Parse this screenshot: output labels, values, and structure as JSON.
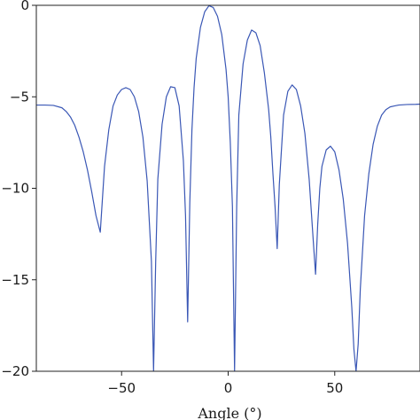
{
  "chart_data": {
    "type": "line",
    "title": "",
    "xlabel": "Angle (°)",
    "ylabel": "",
    "xlim": [
      -90,
      90
    ],
    "ylim": [
      -20,
      0
    ],
    "grid": false,
    "legend": "none",
    "x_ticks": [
      -50,
      0,
      50
    ],
    "x_tick_labels": [
      "−50",
      "0",
      "50"
    ],
    "y_ticks": [
      0,
      -5,
      -10,
      -15,
      -20
    ],
    "y_tick_labels": [
      "0",
      "−5",
      "−10",
      "−15",
      "−20"
    ],
    "line_color": "#3a57b5",
    "series": [
      {
        "x": [
          -90,
          -86,
          -82,
          -78,
          -76,
          -74,
          -72,
          -70,
          -68,
          -66,
          -64,
          -62,
          -60,
          -58,
          -56,
          -54,
          -52,
          -50,
          -48,
          -46,
          -44,
          -42,
          -40,
          -38,
          -36,
          -35,
          -34,
          -33,
          -31,
          -29,
          -27,
          -25,
          -23,
          -21,
          -20,
          -19,
          -18,
          -17,
          -16,
          -15,
          -13,
          -11,
          -9,
          -7,
          -5,
          -3,
          -1,
          0,
          1,
          2,
          3,
          4,
          5,
          7,
          9,
          11,
          13,
          15,
          17,
          19,
          20,
          21,
          22,
          23,
          24,
          26,
          28,
          30,
          32,
          34,
          36,
          38,
          40,
          41,
          42,
          43,
          44,
          46,
          48,
          50,
          52,
          54,
          56,
          58,
          59,
          60,
          61,
          62,
          64,
          66,
          68,
          70,
          72,
          74,
          76,
          78,
          80,
          84,
          88,
          90
        ],
        "y": [
          -5.45,
          -5.45,
          -5.47,
          -5.6,
          -5.8,
          -6.1,
          -6.55,
          -7.2,
          -8.0,
          -9.0,
          -10.2,
          -11.5,
          -12.4,
          -8.8,
          -6.8,
          -5.5,
          -4.9,
          -4.6,
          -4.5,
          -4.6,
          -5.0,
          -5.8,
          -7.2,
          -9.6,
          -14.0,
          -20.0,
          -14.0,
          -9.5,
          -6.5,
          -5.0,
          -4.45,
          -4.5,
          -5.5,
          -8.5,
          -11.5,
          -17.3,
          -10.8,
          -6.8,
          -4.5,
          -2.9,
          -1.2,
          -0.35,
          -0.02,
          -0.12,
          -0.6,
          -1.6,
          -3.5,
          -5.0,
          -7.5,
          -11.0,
          -20.0,
          -11.0,
          -6.0,
          -3.2,
          -1.9,
          -1.35,
          -1.5,
          -2.2,
          -3.7,
          -5.7,
          -7.2,
          -9.2,
          -11.0,
          -13.3,
          -9.8,
          -6.0,
          -4.7,
          -4.35,
          -4.6,
          -5.5,
          -7.0,
          -9.5,
          -13.0,
          -14.7,
          -12.0,
          -10.0,
          -8.8,
          -7.9,
          -7.7,
          -8.0,
          -9.0,
          -10.6,
          -13.0,
          -16.5,
          -18.8,
          -20.0,
          -18.5,
          -15.5,
          -11.5,
          -9.2,
          -7.6,
          -6.6,
          -6.0,
          -5.7,
          -5.55,
          -5.5,
          -5.45,
          -5.42,
          -5.41,
          -5.4
        ]
      }
    ]
  }
}
